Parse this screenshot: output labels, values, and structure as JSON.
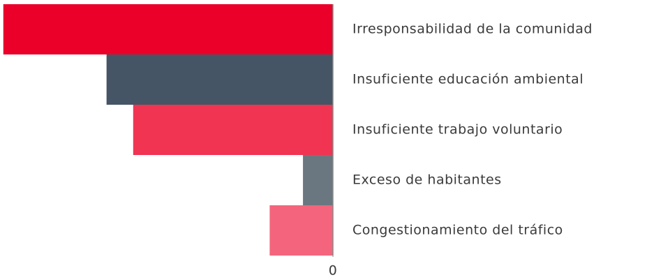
{
  "chart_data": {
    "type": "bar",
    "orientation": "horizontal",
    "x_reversed": true,
    "categories": [
      "Irresponsabilidad de la comunidad",
      "Insuficiente educación ambiental",
      "Insuficiente trabajo voluntario",
      "Exceso de habitantes",
      "Congestionamiento del tráfico"
    ],
    "values": [
      99,
      68,
      60,
      9,
      19
    ],
    "colors": [
      "#eb0029",
      "#455565",
      "#f03452",
      "#6b7780",
      "#f4657d"
    ],
    "xlim": [
      0,
      100
    ],
    "xticks": [
      0
    ]
  }
}
